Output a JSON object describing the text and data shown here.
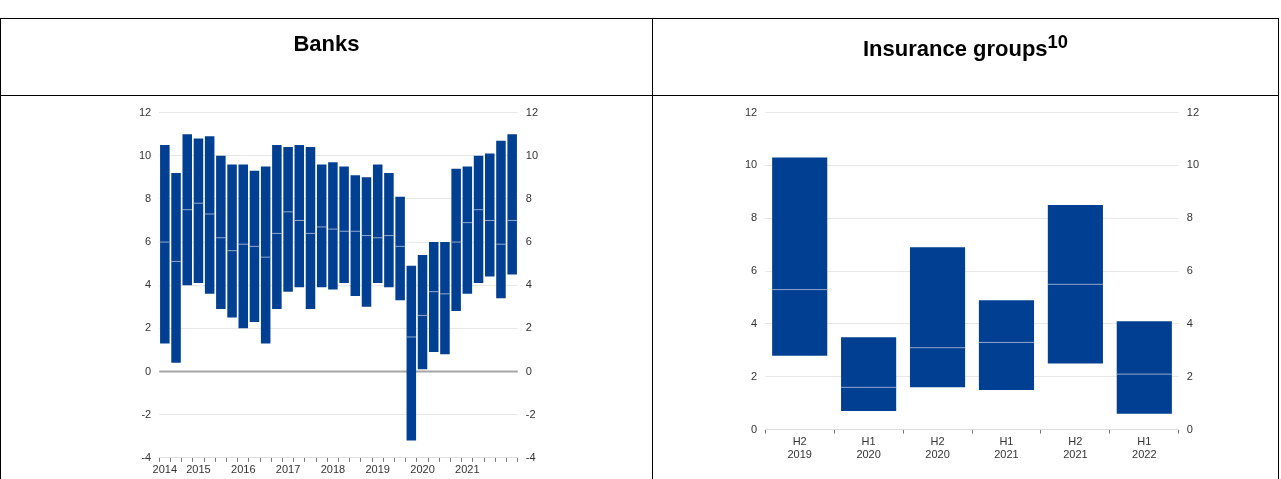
{
  "chart_data": [
    {
      "type": "box",
      "title": "Banks",
      "categories": [
        "2014",
        null,
        null,
        "2015",
        null,
        null,
        null,
        "2016",
        null,
        null,
        null,
        "2017",
        null,
        null,
        null,
        "2018",
        null,
        null,
        null,
        "2019",
        null,
        null,
        null,
        "2020",
        null,
        null,
        null,
        "2021",
        null,
        null,
        null,
        null
      ],
      "series": [
        {
          "color": "#003f91",
          "boxes": [
            {
              "low": 1.3,
              "q1": 1.3,
              "median": 6.0,
              "q3": 10.5,
              "high": 10.5
            },
            {
              "low": 0.4,
              "q1": 0.4,
              "median": 5.1,
              "q3": 9.2,
              "high": 9.2
            },
            {
              "low": 4.0,
              "q1": 4.0,
              "median": 7.5,
              "q3": 11.0,
              "high": 11.0
            },
            {
              "low": 4.1,
              "q1": 4.1,
              "median": 7.8,
              "q3": 10.8,
              "high": 10.8
            },
            {
              "low": 3.6,
              "q1": 3.6,
              "median": 7.3,
              "q3": 10.9,
              "high": 10.9
            },
            {
              "low": 2.9,
              "q1": 2.9,
              "median": 6.2,
              "q3": 10.0,
              "high": 10.0
            },
            {
              "low": 2.5,
              "q1": 2.5,
              "median": 5.6,
              "q3": 9.6,
              "high": 9.6
            },
            {
              "low": 2.0,
              "q1": 2.0,
              "median": 5.9,
              "q3": 9.6,
              "high": 9.6
            },
            {
              "low": 2.3,
              "q1": 2.3,
              "median": 5.8,
              "q3": 9.3,
              "high": 9.3
            },
            {
              "low": 1.3,
              "q1": 1.3,
              "median": 5.3,
              "q3": 9.5,
              "high": 9.5
            },
            {
              "low": 2.9,
              "q1": 2.9,
              "median": 6.4,
              "q3": 10.5,
              "high": 10.5
            },
            {
              "low": 3.7,
              "q1": 3.7,
              "median": 7.4,
              "q3": 10.4,
              "high": 10.4
            },
            {
              "low": 3.9,
              "q1": 3.9,
              "median": 7.0,
              "q3": 10.5,
              "high": 10.5
            },
            {
              "low": 2.9,
              "q1": 2.9,
              "median": 6.4,
              "q3": 10.4,
              "high": 10.4
            },
            {
              "low": 3.9,
              "q1": 3.9,
              "median": 6.7,
              "q3": 9.6,
              "high": 9.6
            },
            {
              "low": 3.8,
              "q1": 3.8,
              "median": 6.6,
              "q3": 9.7,
              "high": 9.7
            },
            {
              "low": 4.1,
              "q1": 4.1,
              "median": 6.5,
              "q3": 9.5,
              "high": 9.5
            },
            {
              "low": 3.5,
              "q1": 3.5,
              "median": 6.5,
              "q3": 9.1,
              "high": 9.1
            },
            {
              "low": 3.0,
              "q1": 3.0,
              "median": 6.3,
              "q3": 9.0,
              "high": 9.0
            },
            {
              "low": 4.1,
              "q1": 4.1,
              "median": 6.2,
              "q3": 9.6,
              "high": 9.6
            },
            {
              "low": 3.9,
              "q1": 3.9,
              "median": 6.3,
              "q3": 9.2,
              "high": 9.2
            },
            {
              "low": 3.3,
              "q1": 3.3,
              "median": 5.8,
              "q3": 8.1,
              "high": 8.1
            },
            {
              "low": -3.2,
              "q1": -3.2,
              "median": 1.6,
              "q3": 4.9,
              "high": 4.9
            },
            {
              "low": 0.1,
              "q1": 0.1,
              "median": 2.6,
              "q3": 5.4,
              "high": 5.4
            },
            {
              "low": 0.9,
              "q1": 0.9,
              "median": 3.7,
              "q3": 6.0,
              "high": 6.0
            },
            {
              "low": 0.8,
              "q1": 0.8,
              "median": 3.6,
              "q3": 6.0,
              "high": 6.0
            },
            {
              "low": 2.8,
              "q1": 2.8,
              "median": 6.0,
              "q3": 9.4,
              "high": 9.4
            },
            {
              "low": 3.6,
              "q1": 3.6,
              "median": 6.9,
              "q3": 9.5,
              "high": 9.5
            },
            {
              "low": 4.1,
              "q1": 4.1,
              "median": 7.5,
              "q3": 10.0,
              "high": 10.0
            },
            {
              "low": 4.4,
              "q1": 4.4,
              "median": 7.0,
              "q3": 10.1,
              "high": 10.1
            },
            {
              "low": 3.4,
              "q1": 3.4,
              "median": 5.9,
              "q3": 10.7,
              "high": 10.7
            },
            {
              "low": 4.5,
              "q1": 4.5,
              "median": 7.0,
              "q3": 11.0,
              "high": 11.0
            }
          ]
        }
      ],
      "ylim": [
        -4,
        12
      ],
      "yticks": [
        -4,
        -2,
        0,
        2,
        4,
        6,
        8,
        10,
        12
      ],
      "y2lim": [
        -4,
        12
      ],
      "y2ticks": [
        -4,
        -2,
        0,
        2,
        4,
        6,
        8,
        10,
        12
      ],
      "grid": "y",
      "ref_lines": [
        {
          "axis": "y",
          "value": 0,
          "color": "#a6a6a6"
        }
      ]
    },
    {
      "type": "box",
      "title": "Insurance groups$^{10}$",
      "categories": [
        "H2 2019",
        "H1 2020",
        "H2 2020",
        "H1 2021",
        "H2 2021",
        "H1 2022"
      ],
      "series": [
        {
          "color": "#003f91",
          "boxes": [
            {
              "low": 2.8,
              "q1": 2.8,
              "median": 5.3,
              "q3": 10.3,
              "high": 10.3
            },
            {
              "low": 0.7,
              "q1": 0.7,
              "median": 1.6,
              "q3": 3.5,
              "high": 3.5
            },
            {
              "low": 1.6,
              "q1": 1.6,
              "median": 3.1,
              "q3": 6.9,
              "high": 6.9
            },
            {
              "low": 1.5,
              "q1": 1.5,
              "median": 3.3,
              "q3": 4.9,
              "high": 4.9
            },
            {
              "low": 2.5,
              "q1": 2.5,
              "median": 5.5,
              "q3": 8.5,
              "high": 8.5
            },
            {
              "low": 0.6,
              "q1": 0.6,
              "median": 2.1,
              "q3": 4.1,
              "high": 4.1
            }
          ]
        }
      ],
      "ylim": [
        0,
        12
      ],
      "yticks": [
        0,
        2,
        4,
        6,
        8,
        10,
        12
      ],
      "y2lim": [
        0,
        12
      ],
      "y2ticks": [
        0,
        2,
        4,
        6,
        8,
        10,
        12
      ],
      "grid": "y"
    }
  ]
}
